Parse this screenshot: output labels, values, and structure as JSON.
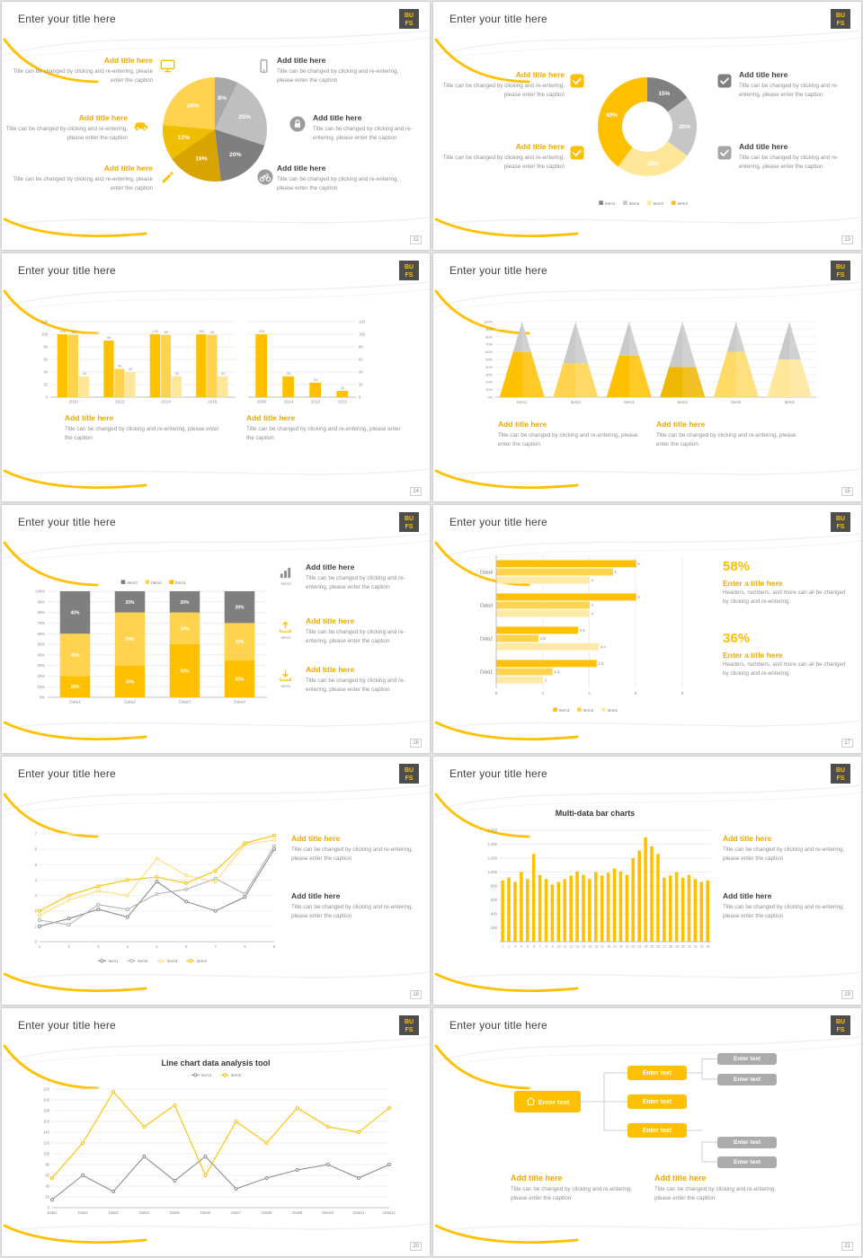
{
  "frame": {
    "title": "Enter your title here",
    "logo_line1": "BU",
    "logo_line2": "FS"
  },
  "strings": {
    "add_title": "Add title here",
    "caption": "Title can be changed by clicking and re-entering, please enter the caption",
    "stat_caption": "Headers, numbers, and more can all be changed by clicking and re-entering.",
    "enter_title": "Enter a title here",
    "enter_text": "Enter text"
  },
  "colors": {
    "brand_yellow": "#FFC000",
    "yellow_mid": "#FFD34D",
    "yellow_light": "#FFE699",
    "gray_dark": "#7F7F7F",
    "gray_mid": "#A6A6A6",
    "gray_light": "#BFBFBF",
    "heading_text": "#3F3F3F",
    "caption_text": "#8F8F8F"
  },
  "slides": [
    {
      "page": "12"
    },
    {
      "page": "13"
    },
    {
      "page": "14"
    },
    {
      "page": "15"
    },
    {
      "page": "16",
      "icon_labels": [
        "Item3",
        "Item2",
        "Item1"
      ]
    },
    {
      "page": "17",
      "stat1": "58%",
      "stat2": "36%"
    },
    {
      "page": "18"
    },
    {
      "page": "19"
    },
    {
      "page": "20"
    },
    {
      "page": "21"
    }
  ],
  "chart_data": [
    {
      "id": "pie12",
      "type": "pie",
      "start": "top",
      "direction": "clockwise",
      "slices": [
        {
          "label": "8%",
          "value": 8,
          "color": "#A8A8A8"
        },
        {
          "label": "25%",
          "value": 25,
          "color": "#BFBFBF"
        },
        {
          "label": "20%",
          "value": 20,
          "color": "#7F7F7F"
        },
        {
          "label": "19%",
          "value": 19,
          "color": "#D9A400"
        },
        {
          "label": "12%",
          "value": 12,
          "color": "#EFBE00"
        },
        {
          "label": "26%",
          "value": 26,
          "color": "#FFD34D"
        }
      ]
    },
    {
      "id": "donut13",
      "type": "donut",
      "slices": [
        {
          "label": "15%",
          "value": 15,
          "color": "#808080",
          "legend": "Item1"
        },
        {
          "label": "20%",
          "value": 20,
          "color": "#C6C6C6",
          "legend": "Item2"
        },
        {
          "label": "25%",
          "value": 25,
          "color": "#FFE699",
          "legend": "Item3"
        },
        {
          "label": "40%",
          "value": 40,
          "color": "#FFC000",
          "legend": "Item4"
        }
      ]
    },
    {
      "id": "bar14a",
      "type": "bar",
      "categories": [
        "2010",
        "2012",
        "2014",
        "2016"
      ],
      "series": [
        {
          "name": "Series1",
          "color": "#FFC000",
          "values": [
            100,
            90,
            100,
            100
          ]
        },
        {
          "name": "Series2",
          "color": "#FFD34D",
          "values": [
            99,
            45,
            99,
            99
          ]
        },
        {
          "name": "Series3",
          "color": "#FFE699",
          "values": [
            33,
            40,
            33,
            33
          ]
        }
      ],
      "ylim": [
        0,
        120
      ],
      "ytick_step": 20,
      "value_labels": true,
      "grid": true
    },
    {
      "id": "bar14b",
      "type": "bar",
      "categories": [
        "2008",
        "2014",
        "2012",
        "2010"
      ],
      "series": [
        {
          "name": "Series1",
          "color": "#FFC000",
          "values": [
            100,
            33,
            23,
            10
          ]
        }
      ],
      "ylim": [
        0,
        120
      ],
      "ytick_step": 20,
      "value_labels": true,
      "grid": true,
      "yaxis_side": "right"
    },
    {
      "id": "pyr15",
      "type": "pyramid",
      "categories": [
        "Item1",
        "Item2",
        "Item3",
        "Item4",
        "Item5",
        "Item6"
      ],
      "upper_color": "#C9C9C9",
      "lower_colors": [
        "#FFC000",
        "#FFD34D",
        "#FFC000",
        "#EFB700",
        "#FFDB66",
        "#FFE699"
      ],
      "lower_percent": [
        60,
        45,
        55,
        40,
        60,
        50
      ],
      "total_percent": 100,
      "ylim_labels": [
        "0%",
        "10%",
        "20%",
        "30%",
        "40%",
        "50%",
        "60%",
        "70%",
        "80%",
        "90%",
        "100%"
      ]
    },
    {
      "id": "stack16",
      "type": "stacked_bar_100",
      "categories": [
        "Data1",
        "Data2",
        "Data3",
        "Data4"
      ],
      "series": [
        {
          "name": "Item1",
          "color": "#FFC000",
          "values": [
            20,
            30,
            50,
            35
          ]
        },
        {
          "name": "Item2",
          "color": "#FFD34D",
          "values": [
            40,
            50,
            30,
            35
          ]
        },
        {
          "name": "Item3",
          "color": "#7F7F7F",
          "values": [
            40,
            20,
            20,
            30
          ]
        }
      ],
      "legend": [
        "Item3",
        "Item2",
        "Item1"
      ],
      "ylim": [
        0,
        100
      ],
      "ytick_step": 10
    },
    {
      "id": "hbar17",
      "type": "hbar",
      "categories": [
        "Data1",
        "Data2",
        "Data3",
        "Data4"
      ],
      "series": [
        {
          "name": "Item3",
          "color": "#FFC000",
          "values": [
            4.3,
            3.5,
            6,
            6
          ]
        },
        {
          "name": "Item2",
          "color": "#FFD34D",
          "values": [
            2.4,
            1.8,
            4,
            5
          ]
        },
        {
          "name": "Item1",
          "color": "#FFE9A8",
          "values": [
            2,
            4.4,
            4,
            4
          ]
        }
      ],
      "xlim": [
        0,
        8
      ],
      "xtick_step": 2,
      "legend": [
        "Item3",
        "Item2",
        "Item1"
      ]
    },
    {
      "id": "line18",
      "type": "line",
      "x_labels": [
        "1",
        "2",
        "3",
        "4",
        "5",
        "6",
        "7",
        "8",
        "9"
      ],
      "ylim": [
        0,
        7
      ],
      "ytick_step": 1,
      "series": [
        {
          "name": "item1",
          "color": "#8C8C8C",
          "values": [
            1.0,
            1.5,
            2.1,
            1.6,
            3.9,
            2.6,
            2.0,
            2.9,
            6.0
          ]
        },
        {
          "name": "item2",
          "color": "#B3B3B3",
          "values": [
            1.4,
            1.1,
            2.4,
            2.1,
            3.1,
            3.4,
            4.1,
            3.1,
            6.2
          ]
        },
        {
          "name": "item3",
          "color": "#FFDD75",
          "values": [
            1.7,
            2.7,
            3.3,
            3.0,
            5.4,
            4.3,
            3.9,
            6.3,
            6.6
          ]
        },
        {
          "name": "item4",
          "color": "#FFC000",
          "values": [
            2.0,
            3.0,
            3.6,
            4.0,
            4.2,
            3.8,
            4.6,
            6.4,
            6.9
          ]
        }
      ],
      "legend_position": "bottom"
    },
    {
      "id": "bar19",
      "type": "bar",
      "title": "Multi-data bar charts",
      "x_tick_from": 1,
      "x_tick_to": 34,
      "color": "#FFC000",
      "values": [
        880,
        920,
        860,
        1000,
        900,
        1260,
        960,
        900,
        820,
        860,
        900,
        950,
        1010,
        960,
        900,
        1000,
        950,
        990,
        1050,
        1010,
        960,
        1200,
        1310,
        1500,
        1370,
        1260,
        920,
        950,
        1000,
        920,
        960,
        900,
        860,
        880
      ],
      "ylim": [
        0,
        1600
      ],
      "ytick_step": 200,
      "grid": true
    },
    {
      "id": "line20",
      "type": "line",
      "title": "Line chart data analysis tool",
      "x_labels": [
        "Data1",
        "Data2",
        "Data3",
        "Data4",
        "Data5",
        "Data6",
        "Data7",
        "Data8",
        "Data9",
        "Data10",
        "Data11",
        "Data12"
      ],
      "ylim": [
        0,
        220
      ],
      "ytick_step": 20,
      "series": [
        {
          "name": "item1",
          "color": "#8C8C8C",
          "values": [
            15,
            60,
            30,
            95,
            50,
            95,
            35,
            55,
            70,
            80,
            55,
            80
          ]
        },
        {
          "name": "item2",
          "color": "#FFC000",
          "values": [
            55,
            120,
            215,
            150,
            190,
            60,
            160,
            120,
            185,
            150,
            140,
            185
          ]
        }
      ],
      "legend_position": "top"
    }
  ]
}
